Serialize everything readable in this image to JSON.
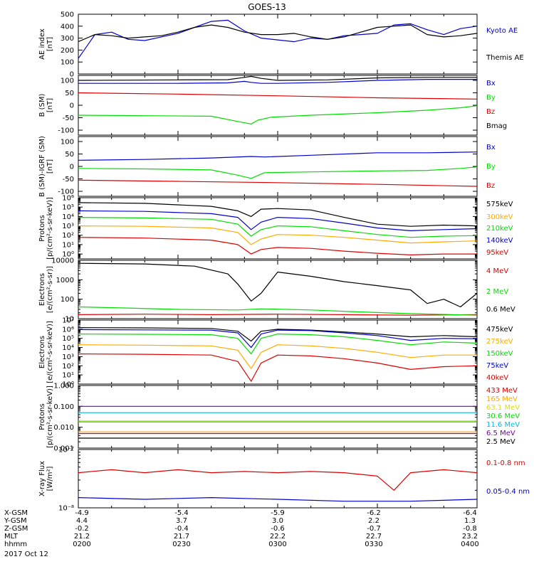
{
  "title": "GOES-13",
  "colors": {
    "black": "#000000",
    "blue": "#0000cc",
    "red": "#dd0000",
    "green": "#00dd00",
    "orange": "#ffaa00",
    "purple": "#7700aa",
    "cyan": "#00bbdd",
    "yellow": "#dddd00"
  },
  "footer": {
    "rows": [
      {
        "label": "X-GSM",
        "values": [
          "-4.9",
          "-5.4",
          "-5.9",
          "-6.2",
          "-6.4"
        ]
      },
      {
        "label": "Y-GSM",
        "values": [
          "4.4",
          "3.7",
          "3.0",
          "2.2",
          "1.3"
        ]
      },
      {
        "label": "Z-GSM",
        "values": [
          "-0.2",
          "-0.4",
          "-0.6",
          "-0.7",
          "-0.8"
        ]
      },
      {
        "label": "MLT",
        "values": [
          "21.2",
          "21.7",
          "22.2",
          "22.7",
          "23.2"
        ]
      },
      {
        "label": "hhmm",
        "values": [
          "0200",
          "0230",
          "0300",
          "0330",
          "0400"
        ]
      }
    ],
    "date": "2017 Oct 12"
  },
  "chart_data": [
    {
      "type": "line",
      "ylabel": [
        "AE index",
        "[nT]"
      ],
      "ylim": [
        0,
        500
      ],
      "log": false,
      "yticks": [
        "0",
        "100",
        "200",
        "300",
        "400",
        "500"
      ],
      "yticks_minor": true,
      "series": [
        {
          "name": "Kyoto AE",
          "color": "blue",
          "x": [
            0,
            5,
            10,
            15,
            20,
            25,
            30,
            35,
            40,
            45,
            50,
            55,
            60,
            65,
            70,
            75,
            80,
            85,
            90,
            95,
            100,
            105,
            110,
            115,
            120
          ],
          "y": [
            130,
            330,
            350,
            290,
            280,
            310,
            340,
            390,
            440,
            450,
            360,
            300,
            285,
            270,
            300,
            290,
            320,
            330,
            340,
            410,
            420,
            370,
            330,
            380,
            400
          ]
        },
        {
          "name": "Themis AE",
          "color": "black",
          "x": [
            0,
            5,
            10,
            15,
            20,
            25,
            30,
            35,
            40,
            45,
            50,
            55,
            60,
            65,
            70,
            75,
            80,
            85,
            90,
            95,
            100,
            105,
            110,
            115,
            120
          ],
          "y": [
            270,
            330,
            320,
            300,
            310,
            320,
            350,
            390,
            410,
            390,
            350,
            330,
            330,
            340,
            310,
            290,
            310,
            350,
            390,
            400,
            410,
            330,
            310,
            320,
            340
          ]
        }
      ]
    },
    {
      "type": "line",
      "ylabel": [
        "B (SM)",
        "[nT]"
      ],
      "ylim": [
        -120,
        120
      ],
      "log": false,
      "yticks": [
        "-100",
        "-50",
        "0",
        "50",
        "100"
      ],
      "series": [
        {
          "name": "Bx",
          "color": "blue",
          "x": [
            0,
            30,
            45,
            50,
            52,
            55,
            60,
            75,
            90,
            105,
            120
          ],
          "y": [
            88,
            88,
            90,
            96,
            92,
            88,
            88,
            92,
            100,
            104,
            104
          ]
        },
        {
          "name": "By",
          "color": "green",
          "x": [
            0,
            20,
            40,
            48,
            52,
            54,
            58,
            70,
            90,
            105,
            115,
            120
          ],
          "y": [
            -40,
            -42,
            -44,
            -65,
            -75,
            -60,
            -48,
            -40,
            -30,
            -20,
            -10,
            -2
          ]
        },
        {
          "name": "Bz",
          "color": "red",
          "x": [
            0,
            30,
            60,
            90,
            120
          ],
          "y": [
            50,
            45,
            38,
            30,
            25
          ]
        },
        {
          "name": "Bmag",
          "color": "black",
          "x": [
            0,
            30,
            45,
            50,
            52,
            55,
            60,
            75,
            90,
            105,
            120
          ],
          "y": [
            100,
            102,
            103,
            112,
            116,
            108,
            100,
            102,
            110,
            112,
            112
          ]
        }
      ]
    },
    {
      "type": "line",
      "ylabel": [
        "B (SM)-IGRF (SM)",
        "[nT]"
      ],
      "ylim": [
        -120,
        120
      ],
      "log": false,
      "yticks": [
        "-100",
        "-50",
        "0",
        "50",
        "100"
      ],
      "series": [
        {
          "name": "Bx",
          "color": "blue",
          "x": [
            0,
            20,
            40,
            52,
            56,
            70,
            90,
            105,
            120
          ],
          "y": [
            25,
            28,
            34,
            40,
            38,
            45,
            55,
            55,
            58
          ]
        },
        {
          "name": "By",
          "color": "green",
          "x": [
            0,
            20,
            40,
            48,
            52,
            56,
            70,
            90,
            105,
            115,
            120
          ],
          "y": [
            -8,
            -10,
            -14,
            -35,
            -48,
            -25,
            -22,
            -18,
            -16,
            -8,
            -2
          ]
        },
        {
          "name": "Bz",
          "color": "red",
          "x": [
            0,
            30,
            60,
            90,
            120
          ],
          "y": [
            -55,
            -60,
            -65,
            -72,
            -80
          ]
        }
      ]
    },
    {
      "type": "line",
      "ylabel": [
        "Protons",
        "[p/(cm²-s-sr-keV)]"
      ],
      "ylim": [
        0.3,
        1000000
      ],
      "log": true,
      "yticks": [
        "10⁰",
        "10¹",
        "10²",
        "10³",
        "10⁴",
        "10⁵",
        "10⁶"
      ],
      "series": [
        {
          "name": "575keV",
          "color": "black",
          "x": [
            0,
            20,
            40,
            48,
            52,
            55,
            60,
            70,
            80,
            90,
            100,
            110,
            120
          ],
          "y": [
            300000,
            250000,
            120000,
            40000,
            10000,
            60000,
            70000,
            50000,
            8000,
            1500,
            900,
            1200,
            1000
          ]
        },
        {
          "name": "300keV",
          "color": "orange",
          "x": [
            0,
            20,
            40,
            48,
            52,
            55,
            60,
            70,
            80,
            90,
            100,
            110,
            120
          ],
          "y": [
            1000,
            900,
            600,
            200,
            10,
            40,
            120,
            100,
            60,
            30,
            15,
            20,
            25
          ]
        },
        {
          "name": "210keV",
          "color": "green",
          "x": [
            0,
            20,
            40,
            48,
            52,
            55,
            60,
            70,
            80,
            90,
            100,
            110,
            120
          ],
          "y": [
            8000,
            7000,
            5000,
            1500,
            80,
            400,
            1000,
            800,
            300,
            120,
            60,
            80,
            90
          ]
        },
        {
          "name": "140keV",
          "color": "blue",
          "x": [
            0,
            20,
            40,
            48,
            52,
            55,
            60,
            70,
            80,
            90,
            100,
            110,
            120
          ],
          "y": [
            40000,
            35000,
            20000,
            8000,
            400,
            2500,
            8000,
            6000,
            2000,
            600,
            300,
            400,
            500
          ]
        },
        {
          "name": "95keV",
          "color": "red",
          "x": [
            0,
            20,
            40,
            48,
            52,
            55,
            60,
            70,
            80,
            90,
            100,
            110,
            120
          ],
          "y": [
            60,
            50,
            30,
            10,
            1,
            3,
            5,
            4,
            2,
            1.2,
            0.8,
            1,
            1
          ]
        }
      ]
    },
    {
      "type": "line",
      "ylabel": [
        "Electrons",
        "[e/(cm²-s-sr)]"
      ],
      "ylim": [
        10,
        10000
      ],
      "log": true,
      "yticks": [
        "10",
        "100",
        "1000",
        "10000"
      ],
      "series": [
        {
          "name": "4 MeV",
          "color": "red",
          "x": [
            0,
            20,
            40,
            60,
            80,
            100,
            120
          ],
          "y": [
            16,
            17,
            16,
            17,
            16,
            15,
            16
          ]
        },
        {
          "name": "2 MeV",
          "color": "green",
          "x": [
            0,
            15,
            30,
            48,
            55,
            70,
            85,
            100,
            120
          ],
          "y": [
            40,
            35,
            30,
            28,
            32,
            28,
            22,
            18,
            15
          ]
        },
        {
          "name": "0.6 MeV",
          "color": "black",
          "x": [
            0,
            20,
            35,
            45,
            48,
            52,
            55,
            60,
            70,
            80,
            90,
            100,
            105,
            110,
            115,
            120
          ],
          "y": [
            7000,
            6500,
            5000,
            2000,
            600,
            80,
            200,
            2500,
            1500,
            800,
            500,
            300,
            60,
            100,
            40,
            200
          ]
        }
      ]
    },
    {
      "type": "line",
      "ylabel": [
        "Electrons",
        "[e/(cm²-s-sr-keV)]"
      ],
      "ylim": [
        1,
        10000000
      ],
      "log": true,
      "yticks": [
        "10⁰",
        "10¹",
        "10²",
        "10³",
        "10⁴",
        "10⁵",
        "10⁶",
        "10⁷"
      ],
      "series": [
        {
          "name": "475keV",
          "color": "black",
          "x": [
            0,
            20,
            40,
            48,
            52,
            55,
            60,
            70,
            80,
            90,
            100,
            110,
            120
          ],
          "y": [
            1500000,
            1400000,
            1200000,
            600000,
            50000,
            600000,
            1000000,
            800000,
            500000,
            300000,
            150000,
            200000,
            150000
          ]
        },
        {
          "name": "275keV",
          "color": "orange",
          "x": [
            0,
            20,
            40,
            48,
            52,
            55,
            60,
            70,
            80,
            90,
            100,
            110,
            120
          ],
          "y": [
            20000,
            18000,
            15000,
            5000,
            50,
            3000,
            20000,
            15000,
            8000,
            3000,
            800,
            1500,
            1500
          ]
        },
        {
          "name": "150keV",
          "color": "green",
          "x": [
            0,
            20,
            40,
            48,
            52,
            55,
            60,
            70,
            80,
            90,
            100,
            110,
            120
          ],
          "y": [
            300000,
            280000,
            250000,
            100000,
            2000,
            100000,
            300000,
            250000,
            150000,
            60000,
            20000,
            40000,
            30000
          ]
        },
        {
          "name": "75keV",
          "color": "blue",
          "x": [
            0,
            20,
            40,
            48,
            52,
            55,
            60,
            70,
            80,
            90,
            100,
            110,
            120
          ],
          "y": [
            900000,
            850000,
            800000,
            400000,
            10000,
            300000,
            800000,
            700000,
            400000,
            200000,
            60000,
            100000,
            90000
          ]
        },
        {
          "name": "40keV",
          "color": "red",
          "x": [
            0,
            20,
            40,
            48,
            52,
            55,
            60,
            70,
            80,
            90,
            100,
            110,
            120
          ],
          "y": [
            2000,
            1800,
            1500,
            300,
            2,
            200,
            1500,
            1200,
            600,
            200,
            40,
            80,
            100
          ]
        }
      ]
    },
    {
      "type": "line",
      "ylabel": [
        "Protons",
        "[p/(cm²-s-sr-keV)]"
      ],
      "ylim": [
        0.001,
        1
      ],
      "log": true,
      "yticks": [
        "0.001",
        "0.010",
        "0.100",
        "1.000"
      ],
      "series": [
        {
          "name": "433 MeV",
          "color": "red",
          "x": [
            0,
            30,
            60,
            90,
            120
          ],
          "y": [
            0.005,
            0.005,
            0.005,
            0.005,
            0.005
          ]
        },
        {
          "name": "165 MeV",
          "color": "orange",
          "x": [
            0,
            30,
            60,
            90,
            120
          ],
          "y": [
            0.006,
            0.006,
            0.006,
            0.006,
            0.006
          ]
        },
        {
          "name": "63.1 MeV",
          "color": "yellow",
          "x": [
            0,
            30,
            60,
            90,
            120
          ],
          "y": [
            0.02,
            0.02,
            0.02,
            0.02,
            0.02
          ]
        },
        {
          "name": "30.6 MeV",
          "color": "green",
          "x": [
            0,
            30,
            60,
            90,
            120
          ],
          "y": [
            0.018,
            0.018,
            0.018,
            0.018,
            0.018
          ]
        },
        {
          "name": "11.6 MeV",
          "color": "cyan",
          "x": [
            0,
            30,
            60,
            90,
            120
          ],
          "y": [
            0.05,
            0.05,
            0.05,
            0.05,
            0.05
          ]
        },
        {
          "name": "6.5 MeV",
          "color": "purple",
          "x": [
            0,
            30,
            60,
            90,
            120
          ],
          "y": [
            0.1,
            0.1,
            0.1,
            0.1,
            0.1
          ]
        },
        {
          "name": "2.5 MeV",
          "color": "black",
          "x": [
            0,
            30,
            60,
            90,
            120
          ],
          "y": [
            0.003,
            0.003,
            0.003,
            0.003,
            0.003
          ]
        }
      ]
    },
    {
      "type": "line",
      "ylabel": [
        "X-ray Flux",
        "[W/m²]"
      ],
      "ylim": [
        1e-08,
        1e-07
      ],
      "log": true,
      "yticks": [
        "10⁻⁸",
        "10⁻⁷"
      ],
      "series": [
        {
          "name": "0.1-0.8 nm",
          "color": "red",
          "x": [
            0,
            10,
            20,
            30,
            40,
            50,
            60,
            70,
            80,
            90,
            95,
            100,
            110,
            120
          ],
          "y": [
            4e-08,
            4.5e-08,
            4e-08,
            4.5e-08,
            4e-08,
            4.2e-08,
            4e-08,
            4.2e-08,
            4e-08,
            3.5e-08,
            2e-08,
            4e-08,
            4.5e-08,
            4e-08
          ]
        },
        {
          "name": "0.05-0.4 nm",
          "color": "blue",
          "x": [
            0,
            20,
            40,
            60,
            80,
            100,
            120
          ],
          "y": [
            1.5e-08,
            1.4e-08,
            1.5e-08,
            1.4e-08,
            1.3e-08,
            1.3e-08,
            1.4e-08
          ]
        }
      ]
    }
  ]
}
